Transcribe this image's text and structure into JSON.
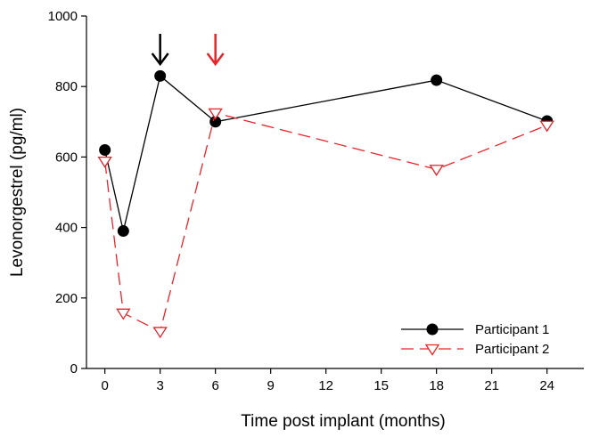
{
  "chart_data": {
    "type": "line",
    "title": "",
    "xlabel": "Time post implant (months)",
    "ylabel": "Levonorgestrel (pg/ml)",
    "xlim": [
      -1,
      26
    ],
    "ylim": [
      0,
      1000
    ],
    "xticks": [
      0,
      3,
      6,
      9,
      12,
      15,
      18,
      21,
      24
    ],
    "yticks": [
      0,
      200,
      400,
      600,
      800,
      1000
    ],
    "grid": false,
    "legend": "bottom-right",
    "series": [
      {
        "name": "Participant 1",
        "color": "#000000",
        "line_style": "solid",
        "marker": "filled-circle",
        "x": [
          0,
          1,
          3,
          6,
          18,
          24
        ],
        "y": [
          620,
          390,
          830,
          700,
          818,
          702
        ]
      },
      {
        "name": "Participant 2",
        "color": "#e8242b",
        "line_style": "dashed",
        "marker": "open-triangle-down",
        "x": [
          0,
          1,
          3,
          6,
          18,
          24
        ],
        "y": [
          588,
          157,
          105,
          725,
          565,
          690
        ]
      }
    ],
    "annotations": [
      {
        "type": "arrow-down",
        "x": 3,
        "color": "#000000"
      },
      {
        "type": "arrow-down",
        "x": 6,
        "color": "#e8242b"
      }
    ]
  }
}
